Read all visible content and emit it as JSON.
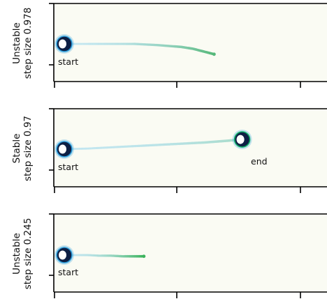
{
  "chart_data": [
    {
      "type": "scatter",
      "panel": "top",
      "ylabel_line1": "Unstable",
      "ylabel_line2": "step size 0.978",
      "background": "#fafbf3",
      "trajectory": {
        "x": [
          0.0,
          0.05,
          0.1,
          0.2,
          0.3,
          0.4,
          0.5,
          0.55,
          0.6,
          0.62,
          0.64
        ],
        "y": [
          0.0,
          0.0,
          0.0,
          0.0,
          0.0,
          -0.02,
          -0.05,
          -0.08,
          -0.13,
          -0.15,
          -0.17
        ],
        "color_start": "#bde4ef",
        "color_end": "#56b87a"
      },
      "annotations": [
        {
          "text": "start",
          "x": 0.0,
          "y": 0.0
        }
      ],
      "markers": [
        {
          "name": "start",
          "x": 0.0,
          "y": 0.0
        }
      ]
    },
    {
      "type": "scatter",
      "panel": "middle",
      "ylabel_line1": "Stable",
      "ylabel_line2": "step size 0.97",
      "background": "#fafbf3",
      "trajectory": {
        "x": [
          0.0,
          0.1,
          0.2,
          0.3,
          0.4,
          0.5,
          0.6,
          0.7,
          0.76
        ],
        "y": [
          0.0,
          0.01,
          0.03,
          0.05,
          0.07,
          0.09,
          0.11,
          0.14,
          0.16
        ],
        "color_start": "#bde4ef",
        "color_end": "#a7dbc9"
      },
      "annotations": [
        {
          "text": "start",
          "x": 0.0,
          "y": 0.0
        },
        {
          "text": "end",
          "x": 0.76,
          "y": 0.16
        }
      ],
      "markers": [
        {
          "name": "start",
          "x": 0.0,
          "y": 0.0
        },
        {
          "name": "end",
          "x": 0.76,
          "y": 0.16
        }
      ]
    },
    {
      "type": "scatter",
      "panel": "bottom",
      "ylabel_line1": "Unstable",
      "ylabel_line2": "step size 0.245",
      "background": "#fafbf3",
      "trajectory": {
        "x": [
          0.0,
          0.05,
          0.1,
          0.15,
          0.2,
          0.25,
          0.3,
          0.34
        ],
        "y": [
          0.0,
          0.0,
          0.0,
          -0.01,
          -0.01,
          -0.02,
          -0.02,
          -0.02
        ],
        "color_start": "#bde4ef",
        "color_end": "#3cb35c"
      },
      "annotations": [
        {
          "text": "start",
          "x": 0.0,
          "y": 0.0
        }
      ],
      "markers": [
        {
          "name": "start",
          "x": 0.0,
          "y": 0.0
        }
      ]
    }
  ],
  "style": {
    "marker_ring_color": "#0d1f44",
    "marker_glow_color": "#2f9fdc",
    "marker_center_color": "#ffffff",
    "end_marker_edge_color": "#12b06a"
  }
}
